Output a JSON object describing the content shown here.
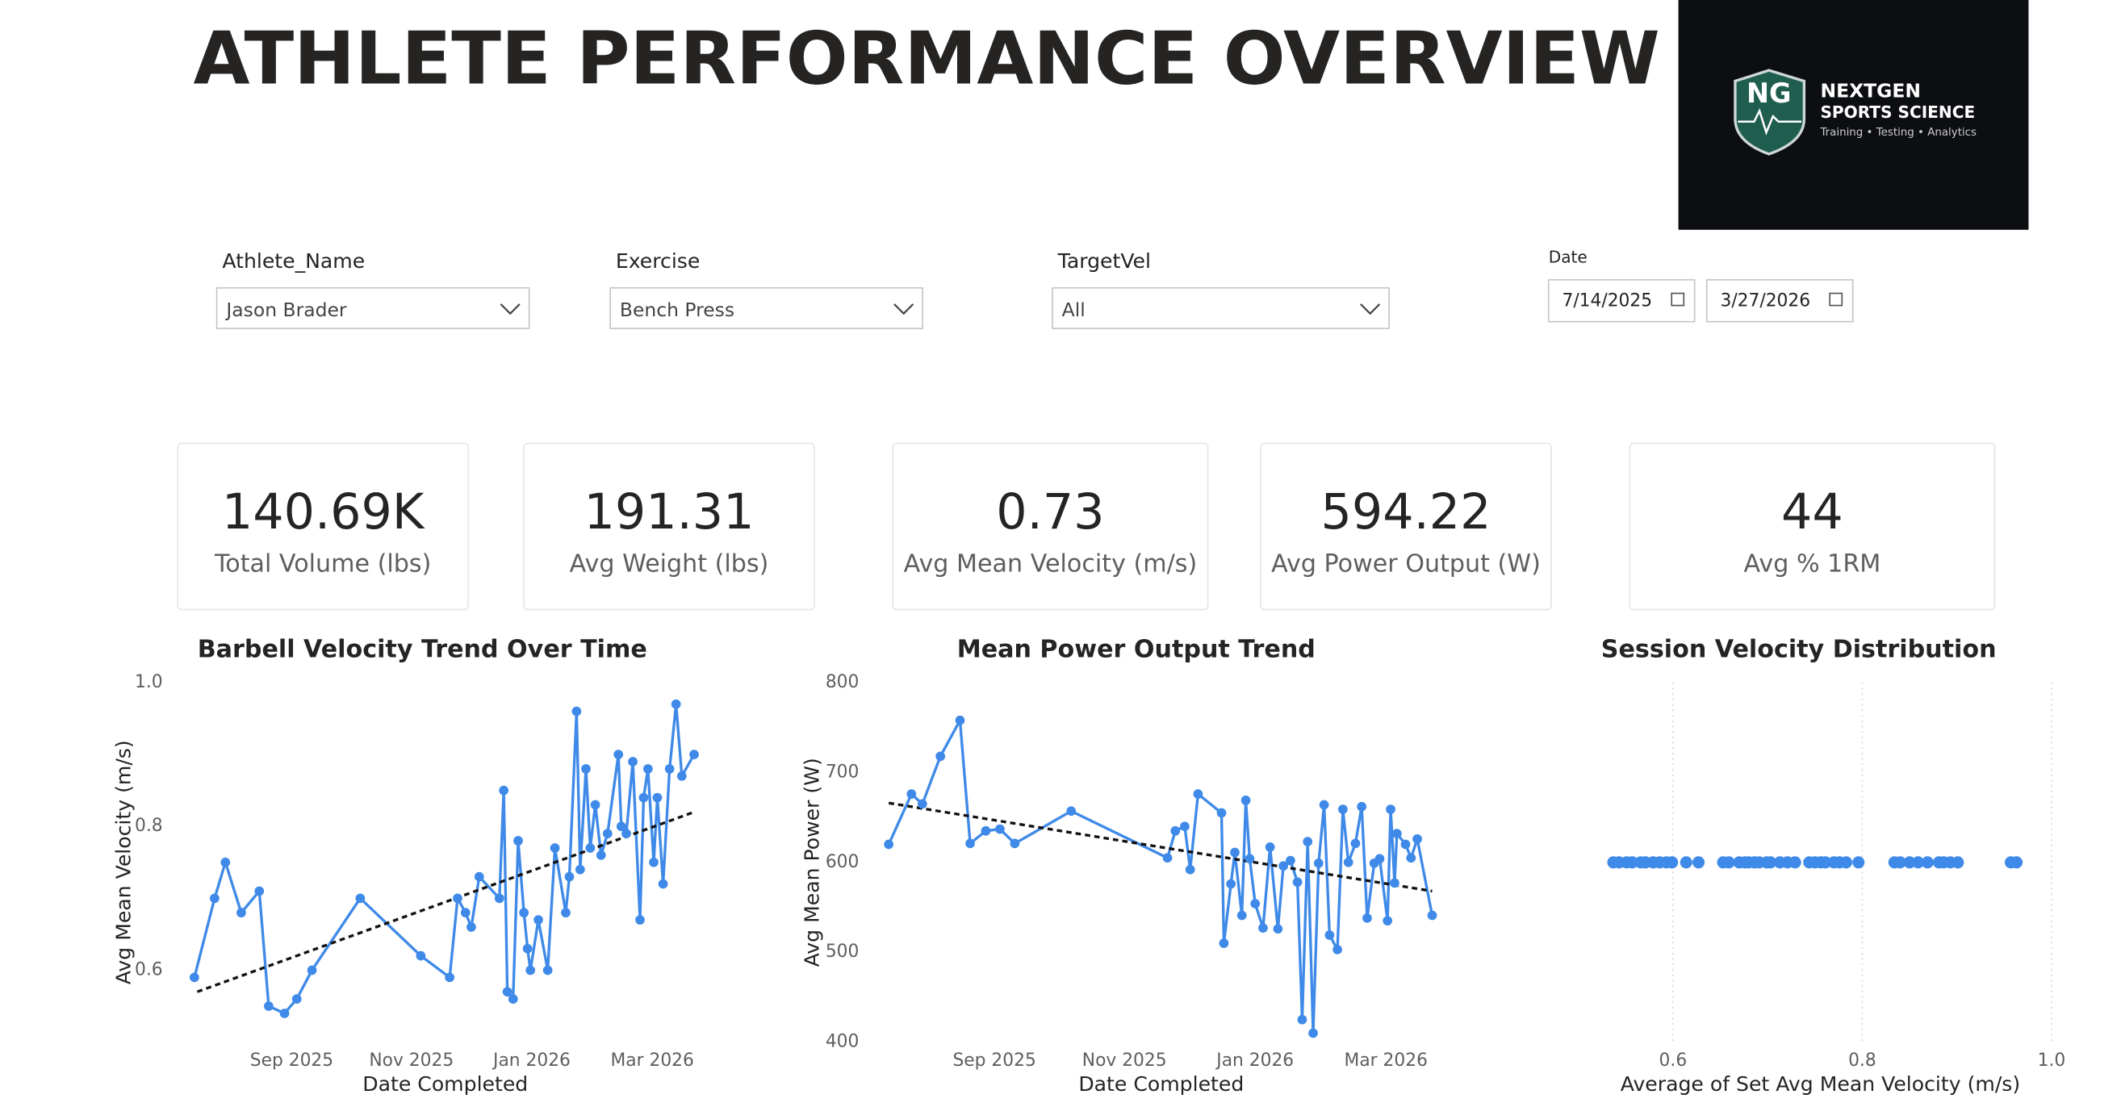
{
  "header": {
    "title": "ATHLETE PERFORMANCE OVERVIEW"
  },
  "logo": {
    "badge": "NG",
    "name": "NEXTGEN",
    "subtitle": "SPORTS SCIENCE",
    "tagline": "Training • Testing • Analytics"
  },
  "filters": [
    {
      "label": "Athlete_Name",
      "value": "Jason Brader"
    },
    {
      "label": "Exercise",
      "value": "Bench Press"
    },
    {
      "label": "TargetVel",
      "value": "All"
    }
  ],
  "date_filter": {
    "label": "Date",
    "start": "7/14/2025",
    "end": "3/27/2026"
  },
  "kpis": [
    {
      "value": "140.69K",
      "label": "Total Volume (lbs)"
    },
    {
      "value": "191.31",
      "label": "Avg Weight (lbs)"
    },
    {
      "value": "0.73",
      "label": "Avg Mean Velocity (m/s)"
    },
    {
      "value": "594.22",
      "label": "Avg Power Output (W)"
    },
    {
      "value": "44",
      "label": "Avg % 1RM"
    }
  ],
  "chart_data": [
    {
      "type": "line",
      "title": "Barbell Velocity Trend Over Time",
      "x_label": "Date Completed",
      "y_label": "Avg Mean Velocity (m/s)",
      "color": "#3f8ae8",
      "x": [
        2025.532,
        2025.56,
        2025.575,
        2025.597,
        2025.622,
        2025.635,
        2025.657,
        2025.674,
        2025.695,
        2025.762,
        2025.846,
        2025.886,
        2025.897,
        2025.908,
        2025.916,
        2025.927,
        2025.955,
        2025.961,
        2025.966,
        2025.974,
        2025.981,
        2025.989,
        2025.994,
        2025.998,
        2026.009,
        2026.022,
        2026.032,
        2026.047,
        2026.052,
        2026.062,
        2026.067,
        2026.075,
        2026.081,
        2026.088,
        2026.096,
        2026.105,
        2026.12,
        2026.124,
        2026.131,
        2026.14,
        2026.15,
        2026.155,
        2026.161,
        2026.169,
        2026.174,
        2026.182,
        2026.191,
        2026.2,
        2026.208,
        2026.225
      ],
      "values": [
        0.59,
        0.7,
        0.75,
        0.68,
        0.71,
        0.55,
        0.54,
        0.56,
        0.6,
        0.7,
        0.62,
        0.59,
        0.7,
        0.68,
        0.66,
        0.73,
        0.7,
        0.85,
        0.57,
        0.56,
        0.78,
        0.68,
        0.63,
        0.6,
        0.67,
        0.6,
        0.77,
        0.68,
        0.73,
        0.96,
        0.74,
        0.88,
        0.77,
        0.83,
        0.76,
        0.79,
        0.9,
        0.8,
        0.79,
        0.89,
        0.67,
        0.84,
        0.88,
        0.75,
        0.84,
        0.72,
        0.88,
        0.97,
        0.87,
        0.9
      ],
      "trendline": {
        "x": [
          2025.536,
          2026.225
        ],
        "values": [
          0.57,
          0.82
        ]
      },
      "xlim": [
        2025.52,
        2026.24
      ],
      "xticks": [
        {
          "value": 2025.667,
          "label": "Sep 2025"
        },
        {
          "value": 2025.833,
          "label": "Nov 2025"
        },
        {
          "value": 2026.0,
          "label": "Jan 2026"
        },
        {
          "value": 2026.167,
          "label": "Mar 2026"
        }
      ],
      "ylim": [
        0.5,
        1.0
      ],
      "yticks": [
        0.6,
        0.8,
        {
          "value": 1,
          "label": "1.0"
        }
      ]
    },
    {
      "type": "line",
      "title": "Mean Power Output Trend",
      "x_label": "Date Completed",
      "y_label": "Avg Mean Power (W)",
      "color": "#3f8ae8",
      "x": [
        2025.532,
        2025.561,
        2025.575,
        2025.598,
        2025.623,
        2025.636,
        2025.656,
        2025.674,
        2025.693,
        2025.765,
        2025.888,
        2025.898,
        2025.91,
        2025.917,
        2025.927,
        2025.957,
        2025.96,
        2025.969,
        2025.974,
        2025.983,
        2025.988,
        2025.993,
        2026.0,
        2026.01,
        2026.019,
        2026.029,
        2026.036,
        2026.045,
        2026.054,
        2026.06,
        2026.067,
        2026.074,
        2026.081,
        2026.088,
        2026.095,
        2026.105,
        2026.112,
        2026.119,
        2026.128,
        2026.136,
        2026.143,
        2026.152,
        2026.159,
        2026.169,
        2026.173,
        2026.178,
        2026.181,
        2026.192,
        2026.199,
        2026.207,
        2026.226
      ],
      "values": [
        620,
        676,
        665,
        718,
        758,
        621,
        635,
        637,
        621,
        657,
        605,
        635,
        640,
        592,
        676,
        655,
        510,
        576,
        611,
        541,
        669,
        604,
        554,
        527,
        617,
        526,
        596,
        602,
        578,
        425,
        623,
        410,
        599,
        664,
        519,
        503,
        659,
        600,
        621,
        662,
        538,
        599,
        604,
        535,
        659,
        577,
        632,
        620,
        605,
        626,
        541
      ],
      "trendline": {
        "x": [
          2025.532,
          2026.226
        ],
        "values": [
          666,
          568
        ]
      },
      "xlim": [
        2025.52,
        2026.24
      ],
      "xticks": [
        {
          "value": 2025.667,
          "label": "Sep 2025"
        },
        {
          "value": 2025.833,
          "label": "Nov 2025"
        },
        {
          "value": 2026.0,
          "label": "Jan 2026"
        },
        {
          "value": 2026.167,
          "label": "Mar 2026"
        }
      ],
      "ylim": [
        400,
        800
      ],
      "yticks": [
        400,
        500,
        600,
        700,
        800
      ]
    },
    {
      "type": "scatter",
      "title": "Session Velocity Distribution",
      "x_label": "Average of Set Avg Mean Velocity (m/s)",
      "color": "#3f8ae8",
      "grid": true,
      "x": [
        0.537,
        0.543,
        0.551,
        0.557,
        0.566,
        0.571,
        0.579,
        0.586,
        0.593,
        0.599,
        0.614,
        0.627,
        0.653,
        0.659,
        0.67,
        0.676,
        0.68,
        0.686,
        0.691,
        0.699,
        0.703,
        0.713,
        0.721,
        0.729,
        0.744,
        0.75,
        0.756,
        0.761,
        0.77,
        0.776,
        0.783,
        0.796,
        0.834,
        0.84,
        0.85,
        0.859,
        0.869,
        0.881,
        0.886,
        0.893,
        0.901,
        0.957,
        0.963
      ],
      "xlim": [
        0.5,
        1.0
      ],
      "xticks": [
        0.6,
        0.8,
        {
          "value": 1,
          "label": "1.0"
        }
      ]
    }
  ]
}
